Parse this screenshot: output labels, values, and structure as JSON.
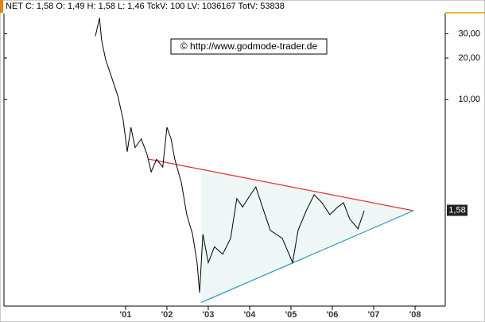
{
  "chart_data": {
    "type": "line",
    "title": "NET C: 1,58 O: 1,49 H: 1,58 L: 1,46 TckV: 100 LV: 1036167 TotV: 53838",
    "annotation": "© http://www.godmode-trader.de",
    "log_scale": true,
    "x": [
      2000.27,
      2000.37,
      2000.42,
      2000.52,
      2000.65,
      2000.81,
      2000.94,
      2001.04,
      2001.13,
      2001.23,
      2001.38,
      2001.52,
      2001.62,
      2001.75,
      2001.9,
      2002.0,
      2002.1,
      2002.19,
      2002.35,
      2002.48,
      2002.62,
      2002.73,
      2002.79,
      2002.87,
      2003.0,
      2003.15,
      2003.35,
      2003.54,
      2003.69,
      2003.83,
      2004.02,
      2004.15,
      2004.31,
      2004.5,
      2004.79,
      2005.04,
      2005.17,
      2005.37,
      2005.56,
      2005.75,
      2005.94,
      2006.13,
      2006.27,
      2006.42,
      2006.62,
      2006.77
    ],
    "series": [
      {
        "color": "#000000",
        "values": [
          28.8,
          39,
          27,
          19.4,
          14.9,
          10.7,
          7.2,
          4.2,
          6.3,
          4.5,
          5.2,
          4.0,
          3.0,
          3.7,
          3.25,
          6.3,
          5.2,
          3.7,
          2.5,
          1.47,
          1.06,
          0.66,
          0.4,
          1.06,
          0.66,
          0.86,
          0.76,
          0.99,
          1.92,
          1.67,
          2.05,
          2.33,
          1.67,
          1.13,
          0.99,
          0.66,
          1.13,
          1.57,
          2.05,
          1.79,
          1.47,
          1.67,
          1.79,
          1.37,
          1.16,
          1.57
        ]
      }
    ],
    "trendlines": [
      {
        "color": "#e03030",
        "x": [
          2001.56,
          2007.96
        ],
        "values": [
          3.71,
          1.57
        ]
      },
      {
        "color": "#2a9bc0",
        "x": [
          2002.83,
          2007.96
        ],
        "values": [
          0.34,
          1.57
        ]
      }
    ],
    "fill_color": "#eef6f6",
    "last_label": {
      "value": 1.58,
      "label": "1,58"
    },
    "xlim": [
      1998.06,
      2008.73
    ],
    "xticks": [
      {
        "value": 2001,
        "label": "'01"
      },
      {
        "value": 2002,
        "label": "'02"
      },
      {
        "value": 2003,
        "label": "'03"
      },
      {
        "value": 2004,
        "label": "'04"
      },
      {
        "value": 2005,
        "label": "'05"
      },
      {
        "value": 2006,
        "label": "'06"
      },
      {
        "value": 2007,
        "label": "'07"
      },
      {
        "value": 2008,
        "label": "'08"
      }
    ],
    "ylim": [
      0.32,
      42
    ],
    "yticks": [
      {
        "value": 30,
        "label": "30,00"
      },
      {
        "value": 20,
        "label": "20,00"
      },
      {
        "value": 10,
        "label": "10,00"
      }
    ]
  }
}
